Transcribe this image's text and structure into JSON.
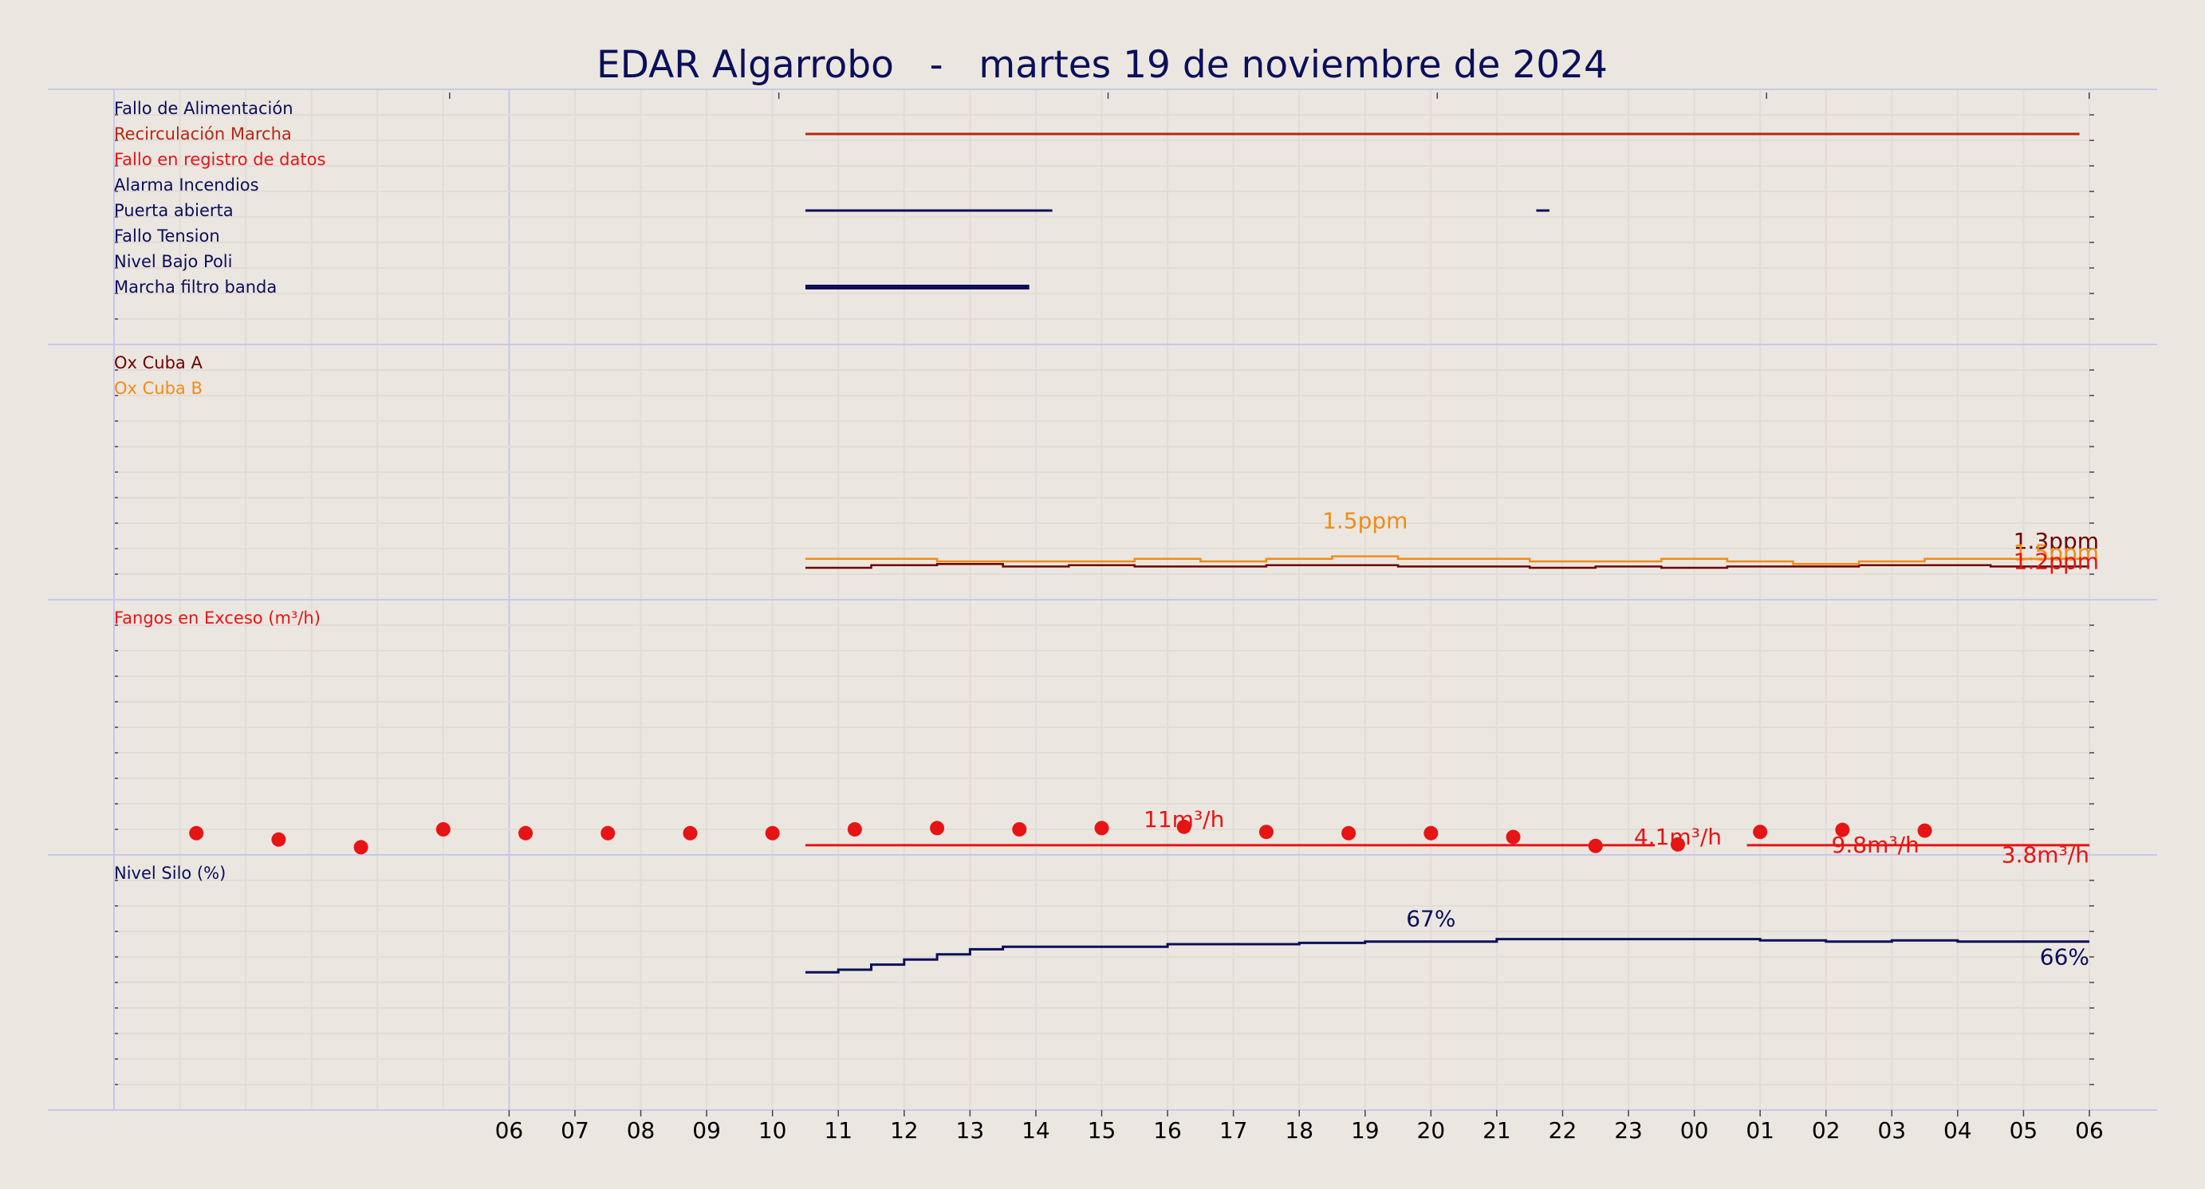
{
  "title": "EDAR Algarrobo   -   martes 19 de noviembre de 2024",
  "x_tick_labels": [
    "06",
    "07",
    "08",
    "09",
    "10",
    "11",
    "12",
    "13",
    "14",
    "15",
    "16",
    "17",
    "18",
    "19",
    "20",
    "21",
    "22",
    "23",
    "00",
    "01",
    "02",
    "03",
    "04",
    "05",
    "06"
  ],
  "colors": {
    "background": "#ebe6e0",
    "navy": "#0a0f5a",
    "dark_red": "#6e0000",
    "red": "#e61414",
    "orange": "#f08c14",
    "brick": "#b42814"
  },
  "chart_data": [
    {
      "type": "line",
      "panel": "alarms",
      "note": "digital signals drawn as horizontal bars when active; x in hours since 05:00",
      "series": [
        {
          "name": "Fallo de Alimentación",
          "color": "#0a0f5a",
          "intervals": []
        },
        {
          "name": "Recirculación Marcha",
          "color": "#b42814",
          "intervals": [
            [
              10.5,
              29.85
            ]
          ]
        },
        {
          "name": "Fallo en registro de datos",
          "color": "#e61414",
          "intervals": []
        },
        {
          "name": "Alarma Incendios",
          "color": "#0a0f5a",
          "intervals": []
        },
        {
          "name": "Puerta abierta",
          "color": "#0a0f5a",
          "intervals": [
            [
              10.5,
              14.25
            ],
            [
              21.6,
              21.8
            ]
          ]
        },
        {
          "name": "Fallo Tension",
          "color": "#0a0f5a",
          "intervals": []
        },
        {
          "name": "Nivel Bajo Poli",
          "color": "#0a0f5a",
          "intervals": []
        },
        {
          "name": "Marcha filtro banda",
          "color": "#0a0f5a",
          "intervals": [
            [
              10.5,
              13.9
            ]
          ]
        }
      ]
    },
    {
      "type": "line",
      "panel": "oxygen",
      "ylim": [
        0,
        10
      ],
      "series": [
        {
          "name": "Ox Cuba A",
          "color": "#6e0000",
          "x": [
            10.5,
            11.5,
            12.5,
            13.5,
            14.5,
            15.5,
            16.5,
            17.5,
            18.5,
            19.5,
            20.5,
            21.5,
            22.5,
            23.5,
            24.5,
            25.5,
            26.5,
            27.5,
            28.5,
            29.5,
            30.0
          ],
          "y": [
            1.25,
            1.35,
            1.4,
            1.3,
            1.35,
            1.3,
            1.3,
            1.35,
            1.35,
            1.3,
            1.3,
            1.25,
            1.3,
            1.25,
            1.3,
            1.3,
            1.35,
            1.35,
            1.3,
            1.3,
            1.3
          ]
        },
        {
          "name": "Ox Cuba B",
          "color": "#f08c14",
          "x": [
            10.5,
            11.5,
            12.5,
            13.5,
            14.5,
            15.5,
            16.5,
            17.5,
            18.5,
            19.5,
            20.5,
            21.5,
            22.5,
            23.5,
            24.5,
            25.5,
            26.5,
            27.5,
            28.5,
            29.5,
            30.0
          ],
          "y": [
            1.6,
            1.6,
            1.5,
            1.5,
            1.5,
            1.6,
            1.5,
            1.6,
            1.7,
            1.6,
            1.6,
            1.5,
            1.5,
            1.6,
            1.5,
            1.4,
            1.5,
            1.6,
            1.6,
            1.6,
            1.6
          ]
        }
      ],
      "annotations": [
        {
          "text": "1.5ppm",
          "x": 19.0,
          "y": 2.8,
          "color": "#f08c14"
        },
        {
          "text": "1.3ppm",
          "x": 30.0,
          "y": 2.0,
          "color": "#6e0000"
        },
        {
          "text": "1.5ppm",
          "x": 30.0,
          "y": 1.55,
          "color": "#f08c14"
        },
        {
          "text": "1.2ppm",
          "x": 30.0,
          "y": 1.2,
          "color": "#e61414"
        }
      ]
    },
    {
      "type": "scatter",
      "panel": "sludge",
      "ylabel": "Fangos en Exceso (m³/h)",
      "ylim": [
        0,
        100
      ],
      "series": [
        {
          "name": "Fangos en Exceso (m³/h)",
          "color": "#e61414",
          "x": [
            1.25,
            2.5,
            3.75,
            5.0,
            6.25,
            7.5,
            8.75,
            10.0,
            11.25,
            12.5,
            13.75,
            15.0,
            16.25,
            17.5,
            18.75,
            20.0,
            21.25,
            22.5,
            23.75,
            25.0,
            26.25,
            27.5
          ],
          "y": [
            8.5,
            6.0,
            3.0,
            10.0,
            8.5,
            8.5,
            8.5,
            8.5,
            10.0,
            10.5,
            10.0,
            10.5,
            11.0,
            9.0,
            8.5,
            8.5,
            7.0,
            3.5,
            4.1,
            9.0,
            9.8,
            9.5
          ]
        },
        {
          "name": "Fangos en Exceso (m³/h)",
          "type": "line",
          "color": "#e61414",
          "x": [
            10.5,
            23.4,
            24.8,
            30.0
          ],
          "y": [
            3.8,
            3.8,
            3.8,
            3.8
          ]
        }
      ],
      "annotations": [
        {
          "text": "11m³/h",
          "x": 16.25,
          "y": 11.0,
          "color": "#e61414"
        },
        {
          "text": "4.1m³/h",
          "x": 23.75,
          "y": 4.1,
          "color": "#e61414"
        },
        {
          "text": "9.8m³/h",
          "x": 26.75,
          "y": 1.0,
          "color": "#e61414"
        },
        {
          "text": "3.8m³/h",
          "x": 30.0,
          "y": -3.0,
          "color": "#e61414"
        }
      ]
    },
    {
      "type": "line",
      "panel": "silo",
      "ylabel": "Nivel Silo (%)",
      "ylim": [
        0,
        100
      ],
      "series": [
        {
          "name": "Nivel Silo (%)",
          "color": "#0a0f5a",
          "x": [
            10.5,
            11.0,
            11.5,
            12.0,
            12.5,
            13.0,
            13.5,
            14.0,
            15.0,
            16.0,
            17.0,
            18.0,
            19.0,
            20.0,
            21.0,
            22.0,
            23.0,
            24.0,
            25.0,
            26.0,
            27.0,
            28.0,
            29.0,
            30.0
          ],
          "y": [
            54,
            55,
            57,
            59,
            61,
            63,
            64,
            64,
            64,
            65,
            65,
            65.5,
            66,
            66,
            67,
            67,
            67,
            67,
            66.5,
            66,
            66.5,
            66,
            66,
            66
          ]
        }
      ],
      "annotations": [
        {
          "text": "67%",
          "x": 20.0,
          "y": 72.0,
          "color": "#0a0f5a"
        },
        {
          "text": "66%",
          "x": 30.0,
          "y": 57.0,
          "color": "#0a0f5a"
        }
      ]
    }
  ]
}
